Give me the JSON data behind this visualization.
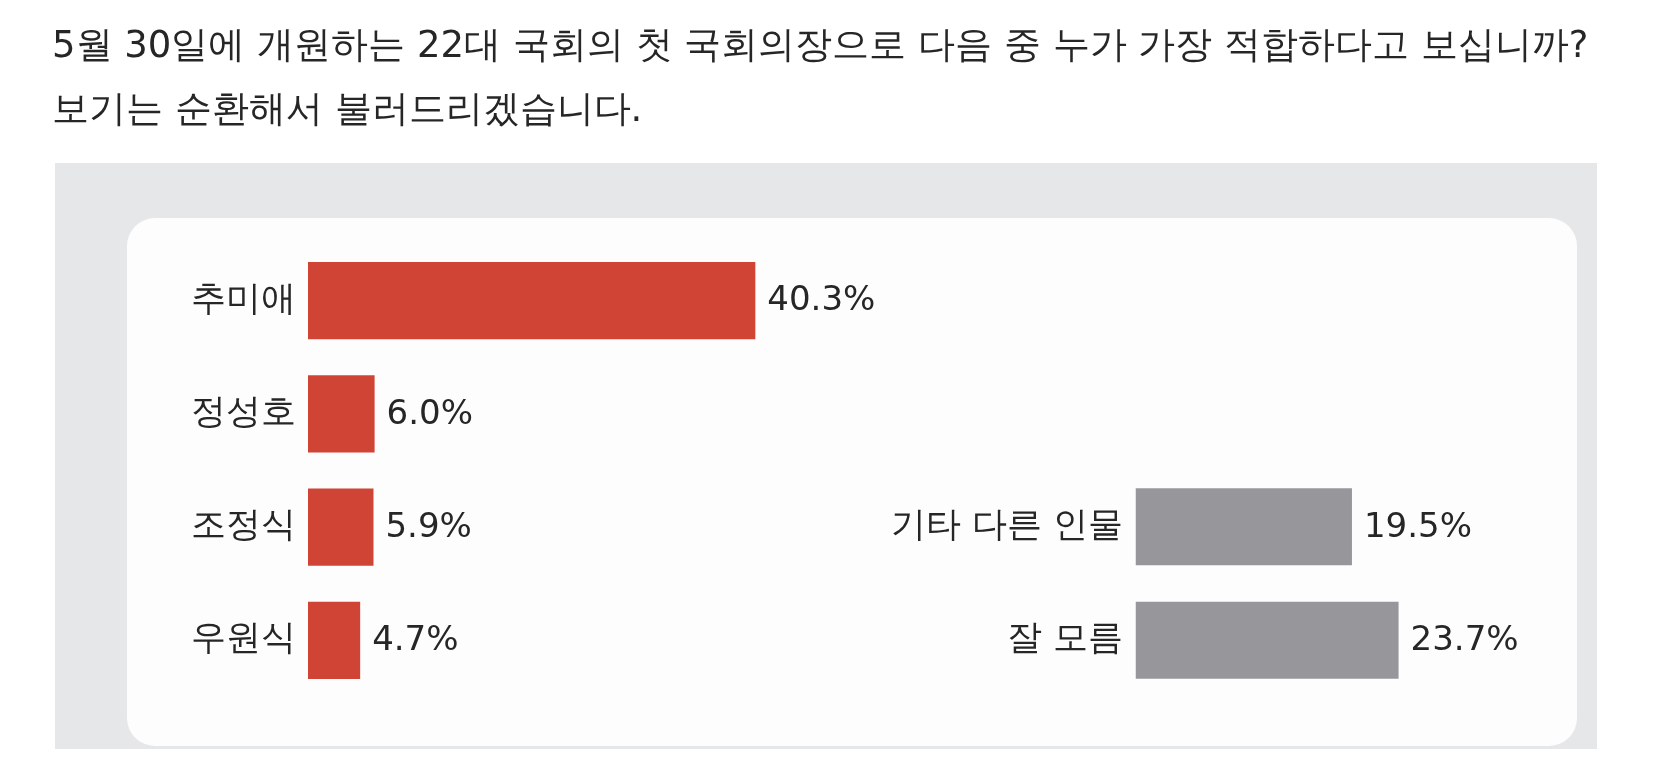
{
  "chart_data": [
    {
      "type": "bar",
      "title": "5월 30일에 개원하는 22대 국회의 첫 국회의장으로 다음 중 누가 가장 적합하다고 보십니까?",
      "subtitle": "보기는 순환해서 불러드리겠습니다.",
      "orientation": "horizontal",
      "categories": [
        "추미애",
        "정성호",
        "조정식",
        "우원식"
      ],
      "values": [
        40.3,
        6.0,
        5.9,
        4.7
      ],
      "value_labels": [
        "40.3%",
        "6.0%",
        "5.9%",
        "4.7%"
      ],
      "color": "#d04436",
      "tick_labels": "y"
    },
    {
      "type": "bar",
      "orientation": "horizontal",
      "categories": [
        "기타 다른 인물",
        "잘 모름"
      ],
      "values": [
        19.5,
        23.7
      ],
      "value_labels": [
        "19.5%",
        "23.7%"
      ],
      "color": "#97979b",
      "tick_labels": "y"
    }
  ]
}
